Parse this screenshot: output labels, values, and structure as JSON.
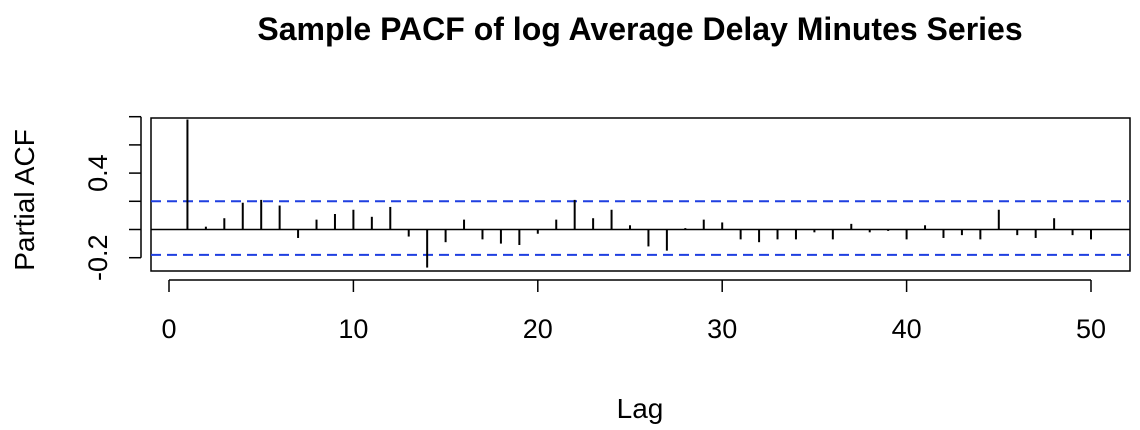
{
  "chart_data": {
    "type": "bar",
    "title": "Sample PACF of log Average Delay Minutes Series",
    "xlabel": "Lag",
    "ylabel": "Partial ACF",
    "xlim": [
      0,
      52
    ],
    "ylim": [
      -0.3,
      0.8
    ],
    "x_ticks": [
      0,
      10,
      20,
      30,
      40,
      50
    ],
    "x_tick_labels": [
      "0",
      "10",
      "20",
      "30",
      "40",
      "50"
    ],
    "y_ticks": [
      -0.2,
      0.4
    ],
    "y_tick_labels": [
      "-0.2",
      "0.4"
    ],
    "y_minor_ticks": [
      -0.2,
      0.0,
      0.2,
      0.4,
      0.6,
      0.8
    ],
    "confidence_bounds": [
      0.2,
      -0.18
    ],
    "lags": [
      1,
      2,
      3,
      4,
      5,
      6,
      7,
      8,
      9,
      10,
      11,
      12,
      13,
      14,
      15,
      16,
      17,
      18,
      19,
      20,
      21,
      22,
      23,
      24,
      25,
      26,
      27,
      28,
      29,
      30,
      31,
      32,
      33,
      34,
      35,
      36,
      37,
      38,
      39,
      40,
      41,
      42,
      43,
      44,
      45,
      46,
      47,
      48,
      49,
      50
    ],
    "values": [
      0.78,
      0.02,
      0.08,
      0.19,
      0.21,
      0.17,
      -0.06,
      0.07,
      0.11,
      0.14,
      0.09,
      0.16,
      -0.05,
      -0.27,
      -0.09,
      0.07,
      -0.07,
      -0.1,
      -0.11,
      -0.03,
      0.07,
      0.21,
      0.08,
      0.14,
      0.03,
      -0.12,
      -0.15,
      0.01,
      0.07,
      0.05,
      -0.07,
      -0.09,
      -0.07,
      -0.07,
      -0.02,
      -0.07,
      0.04,
      -0.02,
      -0.01,
      -0.07,
      0.03,
      -0.06,
      -0.04,
      -0.07,
      0.14,
      -0.04,
      -0.06,
      0.08,
      -0.04,
      -0.07
    ],
    "colors": {
      "bars": "#000000",
      "bounds": "#1f3fe0",
      "frame": "#000000"
    }
  }
}
